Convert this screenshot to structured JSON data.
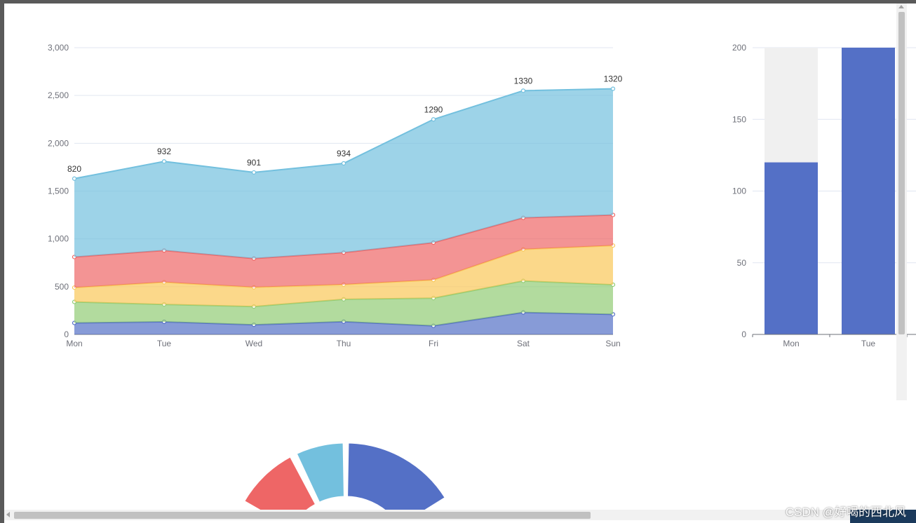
{
  "page": {
    "top_clipped_text": "",
    "bottom_clipped_text": ""
  },
  "chart_data": [
    {
      "type": "area",
      "stacked": true,
      "categories": [
        "Mon",
        "Tue",
        "Wed",
        "Thu",
        "Fri",
        "Sat",
        "Sun"
      ],
      "series": [
        {
          "values": [
            120,
            132,
            101,
            134,
            90,
            230,
            210
          ],
          "color": "#5470c6"
        },
        {
          "values": [
            220,
            182,
            191,
            234,
            290,
            330,
            310
          ],
          "color": "#91cc75"
        },
        {
          "values": [
            150,
            232,
            201,
            154,
            190,
            330,
            410
          ],
          "color": "#fac858"
        },
        {
          "values": [
            320,
            332,
            301,
            334,
            390,
            330,
            320
          ],
          "color": "#ee6666"
        },
        {
          "values": [
            820,
            932,
            901,
            934,
            1290,
            1330,
            1320
          ],
          "color": "#73c0de",
          "labels": true
        }
      ],
      "yticks": [
        "0",
        "500",
        "1,000",
        "1,500",
        "2,000",
        "2,500",
        "3,000"
      ],
      "ylim": [
        0,
        3000
      ],
      "grid": "horizontal"
    },
    {
      "type": "bar",
      "categories": [
        "Mon",
        "Tue"
      ],
      "values": [
        120,
        200
      ],
      "background_max": 200,
      "yticks": [
        "0",
        "50",
        "100",
        "150",
        "200"
      ],
      "ylim": [
        0,
        200
      ],
      "bar_color": "#5470c6",
      "background_color": "#f0f0f0"
    },
    {
      "type": "pie",
      "style": "donut",
      "segments": [
        {
          "color": "#ee6666",
          "angle_start": -60,
          "angle_end": -28
        },
        {
          "color": "#73c0de",
          "angle_start": -25,
          "angle_end": -1
        },
        {
          "color": "#5470c6",
          "angle_start": 1,
          "angle_end": 58
        }
      ]
    }
  ],
  "watermark": "CSDN @好喝的西北风"
}
